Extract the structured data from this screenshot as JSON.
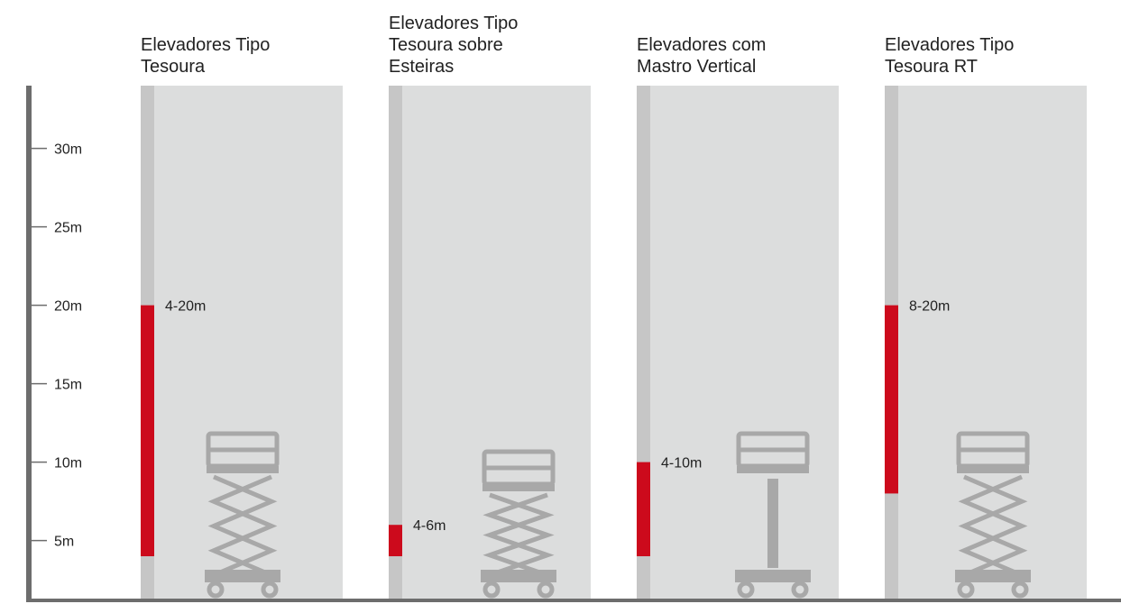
{
  "chart_data": {
    "type": "range",
    "categories": [
      [
        "Elevadores Tipo",
        "Tesoura"
      ],
      [
        "Elevadores Tipo",
        "Tesoura sobre",
        "Esteiras"
      ],
      [
        "Elevadores com",
        "Mastro Vertical"
      ],
      [
        "Elevadores Tipo",
        "Tesoura RT"
      ]
    ],
    "values": [
      [
        4,
        20
      ],
      [
        4,
        6
      ],
      [
        4,
        10
      ],
      [
        8,
        20
      ]
    ],
    "value_labels": [
      "4-20m",
      "4-6m",
      "4-10m",
      "8-20m"
    ],
    "color": "#cc0a1c",
    "ylim": [
      1.3,
      34
    ],
    "yticks": [
      {
        "value": 5,
        "label": "5m"
      },
      {
        "value": 10,
        "label": "10m"
      },
      {
        "value": 15,
        "label": "15m"
      },
      {
        "value": 20,
        "label": "20m"
      },
      {
        "value": 25,
        "label": "25m"
      },
      {
        "value": 30,
        "label": "30m"
      }
    ]
  }
}
